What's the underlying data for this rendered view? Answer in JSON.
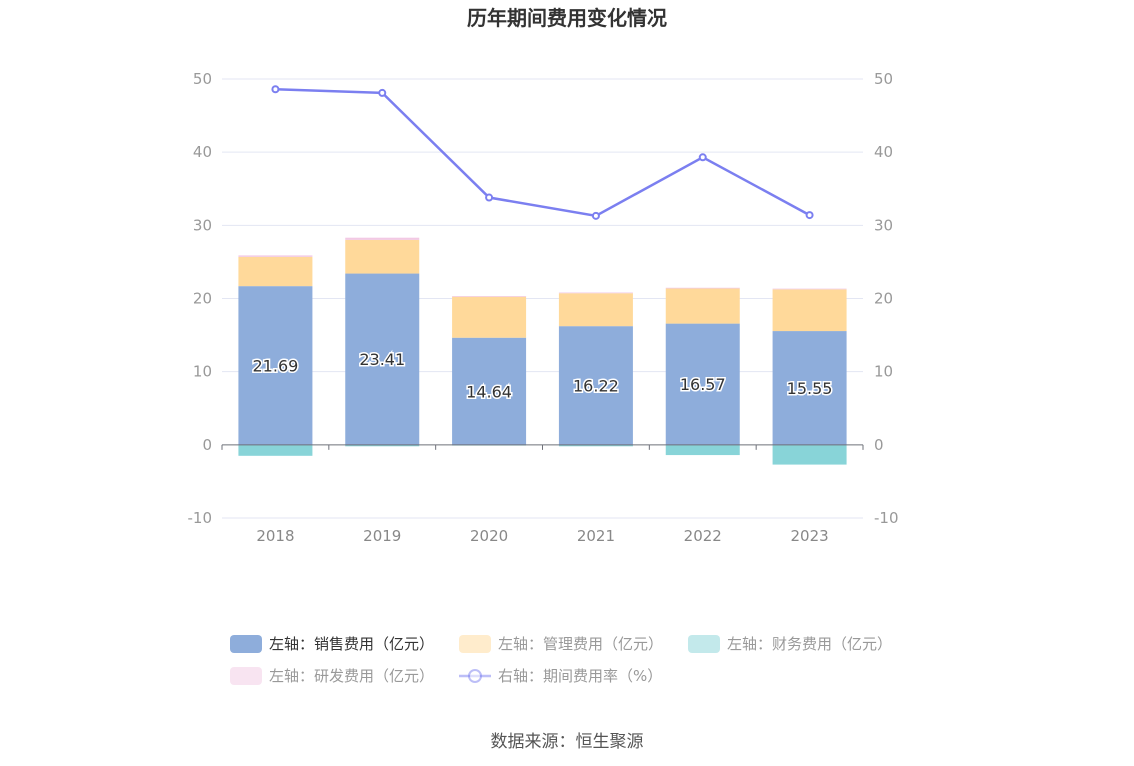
{
  "title": "历年期间费用变化情况",
  "source": "数据来源：恒生聚源",
  "chart_data": {
    "type": "bar",
    "title": "历年期间费用变化情况",
    "categories": [
      "2018",
      "2019",
      "2020",
      "2021",
      "2022",
      "2023"
    ],
    "stacked": true,
    "left_axis": {
      "ylim": [
        -10,
        50
      ],
      "ticks": [
        "-10",
        "0",
        "10",
        "20",
        "30",
        "40",
        "50"
      ]
    },
    "right_axis": {
      "ylim": [
        -10,
        50
      ],
      "ticks": [
        "-10",
        "0",
        "10",
        "20",
        "30",
        "40",
        "50"
      ]
    },
    "series": [
      {
        "name": "左轴：销售费用（亿元）",
        "axis": "left",
        "type": "bar",
        "color": "#8eaddb",
        "values": [
          21.69,
          23.41,
          14.64,
          16.22,
          16.57,
          15.55
        ],
        "show_labels": true
      },
      {
        "name": "左轴：管理费用（亿元）",
        "axis": "left",
        "type": "bar",
        "color": "#ffd99a",
        "values": [
          4.0,
          4.6,
          5.6,
          4.5,
          4.8,
          5.7
        ]
      },
      {
        "name": "左轴：财务费用（亿元）",
        "axis": "left",
        "type": "bar",
        "color": "#88d4d8",
        "values": [
          -1.5,
          -0.2,
          -0.1,
          -0.2,
          -1.4,
          -2.7
        ]
      },
      {
        "name": "左轴：研发费用（亿元）",
        "axis": "left",
        "type": "bar",
        "color": "#f2c9e4",
        "values": [
          0.2,
          0.3,
          0.1,
          0.1,
          0.1,
          0.1
        ]
      },
      {
        "name": "右轴：期间费用率（%）",
        "axis": "right",
        "type": "line",
        "color": "#7b7ff0",
        "values": [
          48.6,
          48.1,
          33.8,
          31.3,
          39.3,
          31.4
        ]
      }
    ],
    "grid": true,
    "legend_position": "bottom"
  }
}
